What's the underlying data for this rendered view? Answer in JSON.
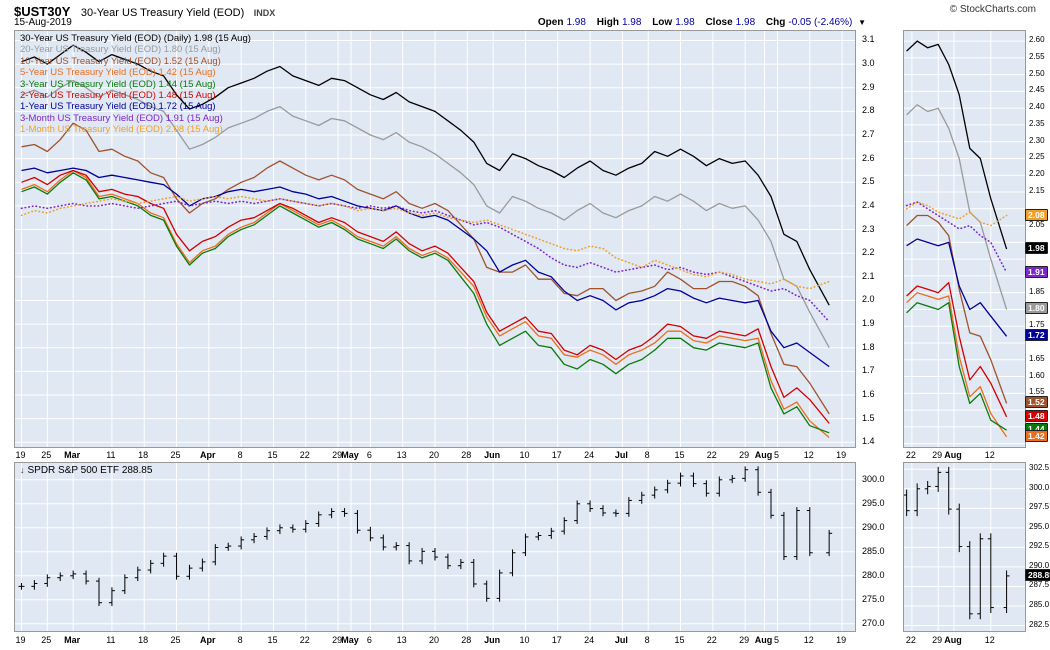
{
  "header": {
    "symbol": "$UST30Y",
    "title": "30-Year US Treasury Yield (EOD)",
    "exchange": "INDX",
    "copyright": "© StockCharts.com",
    "date": "15-Aug-2019",
    "quote": [
      {
        "label": "Open",
        "value": "1.98"
      },
      {
        "label": "High",
        "value": "1.98"
      },
      {
        "label": "Low",
        "value": "1.98"
      },
      {
        "label": "Close",
        "value": "1.98"
      },
      {
        "label": "Chg",
        "value": "-0.05 (-2.46%)"
      }
    ],
    "direction_icon": "▼"
  },
  "chart_data": [
    {
      "type": "line",
      "title": "US Treasury Yields (EOD) Daily",
      "xlim": [
        -1,
        129
      ],
      "ylim": [
        1.38,
        3.14
      ],
      "y_ticks": [
        3.1,
        3.0,
        2.9,
        2.8,
        2.7,
        2.6,
        2.5,
        2.4,
        2.3,
        2.2,
        2.1,
        2.0,
        1.9,
        1.8,
        1.7,
        1.6,
        1.5,
        1.4
      ],
      "x_day_index": [
        0,
        2,
        4,
        6,
        8,
        10,
        12,
        14,
        16,
        18,
        20,
        22,
        24,
        26,
        28,
        30,
        32,
        34,
        36,
        38,
        40,
        42,
        44,
        46,
        48,
        50,
        52,
        54,
        56,
        58,
        60,
        62,
        64,
        66,
        68,
        70,
        72,
        74,
        76,
        78,
        80,
        82,
        84,
        86,
        88,
        90,
        92,
        94,
        96,
        98,
        100,
        102,
        104,
        106,
        108,
        110,
        112,
        114,
        116,
        118,
        120,
        122,
        125
      ],
      "x_ticks": [
        {
          "pos": 0,
          "label": "19"
        },
        {
          "pos": 4,
          "label": "25"
        },
        {
          "pos": 8,
          "label": "Mar",
          "month": true
        },
        {
          "pos": 14,
          "label": "11"
        },
        {
          "pos": 19,
          "label": "18"
        },
        {
          "pos": 24,
          "label": "25"
        },
        {
          "pos": 29,
          "label": "Apr",
          "month": true
        },
        {
          "pos": 34,
          "label": "8"
        },
        {
          "pos": 39,
          "label": "15"
        },
        {
          "pos": 44,
          "label": "22"
        },
        {
          "pos": 49,
          "label": "29"
        },
        {
          "pos": 51,
          "label": "May",
          "month": true
        },
        {
          "pos": 54,
          "label": "6"
        },
        {
          "pos": 59,
          "label": "13"
        },
        {
          "pos": 64,
          "label": "20"
        },
        {
          "pos": 69,
          "label": "28"
        },
        {
          "pos": 73,
          "label": "Jun",
          "month": true
        },
        {
          "pos": 78,
          "label": "10"
        },
        {
          "pos": 83,
          "label": "17"
        },
        {
          "pos": 88,
          "label": "24"
        },
        {
          "pos": 93,
          "label": "Jul",
          "month": true
        },
        {
          "pos": 97,
          "label": "8"
        },
        {
          "pos": 102,
          "label": "15"
        },
        {
          "pos": 107,
          "label": "22"
        },
        {
          "pos": 112,
          "label": "29"
        },
        {
          "pos": 115,
          "label": "Aug",
          "month": true
        },
        {
          "pos": 117,
          "label": "5"
        },
        {
          "pos": 122,
          "label": "12"
        },
        {
          "pos": 127,
          "label": "19"
        }
      ],
      "series": [
        {
          "id": "30y",
          "legend": "30-Year US Treasury Yield (EOD) (Daily) 1.98 (15 Aug)",
          "last": 1.98,
          "color": "#000000",
          "dotted": false,
          "values": [
            3.01,
            3.03,
            3.0,
            3.04,
            3.08,
            3.05,
            3.01,
            3.04,
            3.02,
            3.0,
            2.97,
            2.95,
            2.87,
            2.81,
            2.83,
            2.86,
            2.9,
            2.92,
            2.94,
            2.97,
            2.99,
            2.95,
            2.93,
            2.91,
            2.94,
            2.93,
            2.9,
            2.87,
            2.85,
            2.88,
            2.84,
            2.82,
            2.8,
            2.76,
            2.72,
            2.67,
            2.58,
            2.55,
            2.62,
            2.6,
            2.57,
            2.55,
            2.52,
            2.56,
            2.59,
            2.55,
            2.53,
            2.56,
            2.58,
            2.63,
            2.61,
            2.64,
            2.61,
            2.57,
            2.6,
            2.58,
            2.59,
            2.53,
            2.44,
            2.28,
            2.25,
            2.13,
            1.98
          ]
        },
        {
          "id": "20y",
          "legend": "20-Year US Treasury Yield (EOD) 1.80 (15 Aug)",
          "last": 1.8,
          "color": "#9a9a9a",
          "dotted": false,
          "values": [
            2.87,
            2.89,
            2.86,
            2.9,
            2.93,
            2.9,
            2.86,
            2.89,
            2.87,
            2.85,
            2.82,
            2.8,
            2.72,
            2.64,
            2.66,
            2.69,
            2.73,
            2.75,
            2.77,
            2.8,
            2.82,
            2.78,
            2.76,
            2.74,
            2.77,
            2.76,
            2.73,
            2.7,
            2.68,
            2.71,
            2.67,
            2.65,
            2.62,
            2.58,
            2.54,
            2.49,
            2.4,
            2.37,
            2.44,
            2.42,
            2.39,
            2.37,
            2.34,
            2.38,
            2.41,
            2.37,
            2.35,
            2.38,
            2.4,
            2.44,
            2.42,
            2.45,
            2.42,
            2.38,
            2.41,
            2.39,
            2.4,
            2.34,
            2.25,
            2.09,
            2.06,
            1.95,
            1.8
          ]
        },
        {
          "id": "10y",
          "legend": "10-Year US Treasury Yield (EOD) 1.52 (15 Aug)",
          "last": 1.52,
          "color": "#a0522d",
          "dotted": false,
          "values": [
            2.65,
            2.66,
            2.63,
            2.68,
            2.75,
            2.72,
            2.63,
            2.64,
            2.61,
            2.59,
            2.54,
            2.52,
            2.43,
            2.37,
            2.41,
            2.43,
            2.47,
            2.5,
            2.52,
            2.56,
            2.59,
            2.56,
            2.53,
            2.51,
            2.53,
            2.51,
            2.47,
            2.45,
            2.43,
            2.46,
            2.41,
            2.39,
            2.41,
            2.38,
            2.32,
            2.26,
            2.14,
            2.12,
            2.12,
            2.15,
            2.09,
            2.09,
            2.03,
            2.02,
            2.05,
            2.05,
            2.0,
            2.03,
            2.04,
            2.06,
            2.12,
            2.09,
            2.05,
            2.05,
            2.08,
            2.08,
            2.06,
            2.02,
            1.86,
            1.73,
            1.72,
            1.65,
            1.52
          ]
        },
        {
          "id": "5y",
          "legend": "5-Year US Treasury Yield (EOD) 1.42 (15 Aug)",
          "last": 1.42,
          "color": "#ed6d1e",
          "dotted": false,
          "values": [
            2.47,
            2.49,
            2.46,
            2.51,
            2.55,
            2.52,
            2.44,
            2.45,
            2.43,
            2.41,
            2.37,
            2.35,
            2.24,
            2.16,
            2.21,
            2.23,
            2.28,
            2.31,
            2.33,
            2.37,
            2.41,
            2.38,
            2.35,
            2.32,
            2.34,
            2.31,
            2.27,
            2.25,
            2.23,
            2.27,
            2.22,
            2.19,
            2.21,
            2.18,
            2.12,
            2.06,
            1.93,
            1.85,
            1.88,
            1.91,
            1.85,
            1.84,
            1.77,
            1.76,
            1.79,
            1.77,
            1.73,
            1.77,
            1.79,
            1.82,
            1.87,
            1.87,
            1.83,
            1.82,
            1.85,
            1.84,
            1.83,
            1.84,
            1.66,
            1.54,
            1.57,
            1.49,
            1.42
          ]
        },
        {
          "id": "3y",
          "legend": "3-Year US Treasury Yield (EOD) 1.44 (15 Aug)",
          "last": 1.44,
          "color": "#0a7a0a",
          "dotted": false,
          "values": [
            2.46,
            2.48,
            2.45,
            2.5,
            2.54,
            2.51,
            2.43,
            2.44,
            2.42,
            2.4,
            2.36,
            2.34,
            2.23,
            2.15,
            2.2,
            2.22,
            2.27,
            2.3,
            2.32,
            2.36,
            2.4,
            2.37,
            2.34,
            2.31,
            2.33,
            2.3,
            2.26,
            2.24,
            2.22,
            2.26,
            2.21,
            2.18,
            2.2,
            2.17,
            2.1,
            2.03,
            1.9,
            1.81,
            1.84,
            1.87,
            1.81,
            1.8,
            1.73,
            1.71,
            1.75,
            1.73,
            1.69,
            1.73,
            1.75,
            1.79,
            1.84,
            1.84,
            1.8,
            1.79,
            1.82,
            1.81,
            1.8,
            1.82,
            1.63,
            1.52,
            1.55,
            1.47,
            1.44
          ]
        },
        {
          "id": "2y",
          "legend": "2-Year US Treasury Yield (EOD) 1.48 (15 Aug)",
          "last": 1.48,
          "color": "#d40000",
          "dotted": false,
          "values": [
            2.5,
            2.52,
            2.49,
            2.53,
            2.55,
            2.53,
            2.46,
            2.47,
            2.45,
            2.44,
            2.41,
            2.39,
            2.28,
            2.21,
            2.25,
            2.27,
            2.31,
            2.34,
            2.35,
            2.38,
            2.41,
            2.39,
            2.36,
            2.33,
            2.35,
            2.33,
            2.29,
            2.27,
            2.25,
            2.29,
            2.24,
            2.21,
            2.23,
            2.2,
            2.14,
            2.08,
            1.95,
            1.87,
            1.9,
            1.93,
            1.87,
            1.86,
            1.79,
            1.77,
            1.81,
            1.79,
            1.75,
            1.79,
            1.81,
            1.85,
            1.9,
            1.89,
            1.85,
            1.84,
            1.87,
            1.86,
            1.85,
            1.88,
            1.72,
            1.59,
            1.63,
            1.58,
            1.48
          ]
        },
        {
          "id": "1y",
          "legend": "1-Year US Treasury Yield (EOD) 1.72 (15 Aug)",
          "last": 1.72,
          "color": "#000099",
          "dotted": false,
          "values": [
            2.55,
            2.56,
            2.54,
            2.55,
            2.56,
            2.55,
            2.52,
            2.53,
            2.52,
            2.51,
            2.5,
            2.49,
            2.45,
            2.4,
            2.43,
            2.44,
            2.46,
            2.47,
            2.46,
            2.47,
            2.48,
            2.46,
            2.45,
            2.43,
            2.44,
            2.42,
            2.4,
            2.39,
            2.38,
            2.4,
            2.37,
            2.35,
            2.36,
            2.34,
            2.3,
            2.26,
            2.21,
            2.12,
            2.15,
            2.17,
            2.12,
            2.1,
            2.04,
            2.0,
            2.02,
            2.0,
            1.96,
            1.99,
            2.0,
            2.02,
            2.05,
            2.04,
            2.01,
            1.99,
            2.01,
            2.0,
            1.99,
            2.0,
            1.87,
            1.8,
            1.82,
            1.78,
            1.72
          ]
        },
        {
          "id": "3m",
          "legend": "3-Month US Treasury Yield (EOD) 1.91 (15 Aug)",
          "last": 1.91,
          "color": "#7d26cc",
          "dotted": true,
          "values": [
            2.39,
            2.4,
            2.39,
            2.4,
            2.41,
            2.4,
            2.4,
            2.41,
            2.4,
            2.39,
            2.4,
            2.41,
            2.42,
            2.4,
            2.41,
            2.42,
            2.41,
            2.42,
            2.41,
            2.42,
            2.43,
            2.42,
            2.41,
            2.4,
            2.41,
            2.4,
            2.39,
            2.4,
            2.39,
            2.4,
            2.38,
            2.37,
            2.38,
            2.36,
            2.34,
            2.32,
            2.33,
            2.31,
            2.28,
            2.25,
            2.22,
            2.18,
            2.15,
            2.14,
            2.16,
            2.14,
            2.12,
            2.13,
            2.14,
            2.15,
            2.13,
            2.14,
            2.12,
            2.11,
            2.12,
            2.1,
            2.08,
            2.06,
            2.04,
            2.05,
            2.02,
            2.0,
            1.91
          ]
        },
        {
          "id": "1m",
          "legend": "1-Month US Treasury Yield (EOD) 2.08 (15 Aug)",
          "last": 2.08,
          "color": "#f0a028",
          "dotted": true,
          "values": [
            2.36,
            2.38,
            2.37,
            2.39,
            2.4,
            2.41,
            2.42,
            2.43,
            2.42,
            2.41,
            2.42,
            2.43,
            2.44,
            2.42,
            2.43,
            2.44,
            2.43,
            2.44,
            2.43,
            2.42,
            2.43,
            2.42,
            2.41,
            2.4,
            2.41,
            2.4,
            2.38,
            2.39,
            2.38,
            2.39,
            2.37,
            2.36,
            2.37,
            2.35,
            2.34,
            2.33,
            2.34,
            2.32,
            2.3,
            2.28,
            2.26,
            2.24,
            2.22,
            2.21,
            2.23,
            2.22,
            2.18,
            2.16,
            2.14,
            2.17,
            2.15,
            2.13,
            2.11,
            2.1,
            2.12,
            2.11,
            2.09,
            2.08,
            2.07,
            2.09,
            2.06,
            2.05,
            2.08
          ]
        }
      ],
      "zoom": {
        "from_day": 106,
        "xlim": [
          105.5,
          128.5
        ],
        "ylim": [
          1.39,
          2.63
        ],
        "x_ticks": [
          {
            "pos": 107,
            "label": "22"
          },
          {
            "pos": 112,
            "label": "29"
          },
          {
            "pos": 115,
            "label": "Aug",
            "month": true
          },
          {
            "pos": 122,
            "label": "12"
          }
        ],
        "y_ticks": [
          2.6,
          2.55,
          2.5,
          2.45,
          2.4,
          2.35,
          2.3,
          2.25,
          2.2,
          2.15,
          2.05,
          1.85,
          1.75,
          1.65,
          1.6,
          1.55
        ],
        "badges": [
          {
            "value": 2.08,
            "label": "2.08",
            "color": "#f0a028"
          },
          {
            "value": 1.98,
            "label": "1.98",
            "color": "#000000"
          },
          {
            "value": 1.91,
            "label": "1.91",
            "color": "#7d26cc"
          },
          {
            "value": 1.8,
            "label": "1.80",
            "color": "#9a9a9a"
          },
          {
            "value": 1.72,
            "label": "1.72",
            "color": "#000099"
          },
          {
            "value": 1.52,
            "label": "1.52",
            "color": "#a0522d"
          },
          {
            "value": 1.48,
            "label": "1.48",
            "color": "#d40000"
          },
          {
            "value": 1.44,
            "label": "1.44",
            "color": "#0a7a0a"
          },
          {
            "value": 1.42,
            "label": "1.42",
            "color": "#ed6d1e"
          }
        ]
      }
    },
    {
      "type": "ohlc_bar",
      "title": "SPDR S&P 500 ETF",
      "last": "288.85",
      "ylim": [
        268.5,
        303.5
      ],
      "y_ticks": [
        300.0,
        295.0,
        290.0,
        285.0,
        280.0,
        275.0,
        270.0
      ],
      "close": [
        277.8,
        278.4,
        279.6,
        280.0,
        280.4,
        278.9,
        274.4,
        276.9,
        279.6,
        281.2,
        282.6,
        284.1,
        279.9,
        281.6,
        282.9,
        285.9,
        286.2,
        287.5,
        288.2,
        289.4,
        290.0,
        289.7,
        290.9,
        292.7,
        293.4,
        293.0,
        289.5,
        287.9,
        286.0,
        286.3,
        283.1,
        285.1,
        283.9,
        282.1,
        282.8,
        278.3,
        275.3,
        280.6,
        284.8,
        288.1,
        288.4,
        289.3,
        291.5,
        295.0,
        294.0,
        293.1,
        293.0,
        295.7,
        296.8,
        297.9,
        299.3,
        300.8,
        299.2,
        297.2,
        300.0,
        300.3,
        302.1,
        297.4,
        292.6,
        284.0,
        293.6,
        284.8,
        288.85
      ],
      "zoom": {
        "from_day": 106,
        "ylim": [
          281.8,
          303.3
        ],
        "y_ticks": [
          302.5,
          300.0,
          297.5,
          295.0,
          292.5,
          290.0,
          287.5,
          285.0,
          282.5
        ],
        "badge": {
          "value": 288.85,
          "label": "288.85",
          "color": "#000000"
        }
      }
    }
  ]
}
